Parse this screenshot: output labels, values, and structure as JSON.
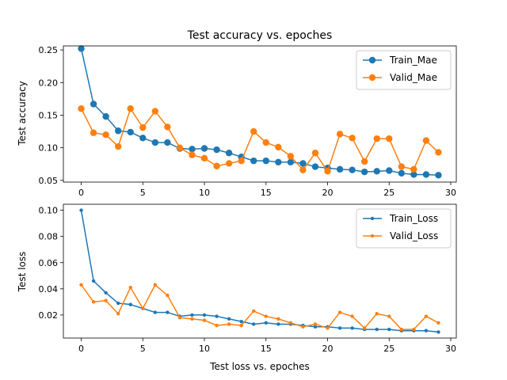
{
  "chart_data": [
    {
      "type": "line",
      "title": "Test accuracy vs. epoches",
      "xlabel": "",
      "ylabel": "Test accuracy",
      "xlim": [
        -1.45,
        30.45
      ],
      "ylim": [
        0.0474,
        0.2562
      ],
      "x_ticks": [
        0,
        5,
        10,
        15,
        20,
        25,
        30
      ],
      "x_tick_labels": [
        "0",
        "5",
        "10",
        "15",
        "20",
        "25",
        "30"
      ],
      "y_ticks": [
        0.05,
        0.1,
        0.15,
        0.2,
        0.25
      ],
      "y_tick_labels": [
        "0.05",
        "0.10",
        "0.15",
        "0.20",
        "0.25"
      ],
      "legend_position": "top-right",
      "grid": false,
      "marker_radius": 4.2,
      "x": [
        0,
        1,
        2,
        3,
        4,
        5,
        6,
        7,
        8,
        9,
        10,
        11,
        12,
        13,
        14,
        15,
        16,
        17,
        18,
        19,
        20,
        21,
        22,
        23,
        24,
        25,
        26,
        27,
        28,
        29
      ],
      "series": [
        {
          "name": "Train_Mae",
          "color": "#1f77b4",
          "values": [
            0.252,
            0.167,
            0.148,
            0.126,
            0.124,
            0.115,
            0.108,
            0.108,
            0.099,
            0.098,
            0.099,
            0.097,
            0.092,
            0.086,
            0.08,
            0.08,
            0.078,
            0.078,
            0.076,
            0.071,
            0.069,
            0.067,
            0.066,
            0.063,
            0.064,
            0.065,
            0.061,
            0.059,
            0.059,
            0.058
          ]
        },
        {
          "name": "Valid_Mae",
          "color": "#ff7f0e",
          "values": [
            0.16,
            0.123,
            0.12,
            0.102,
            0.16,
            0.131,
            0.156,
            0.132,
            0.1,
            0.089,
            0.084,
            0.072,
            0.076,
            0.08,
            0.125,
            0.108,
            0.101,
            0.087,
            0.066,
            0.092,
            0.064,
            0.121,
            0.115,
            0.079,
            0.114,
            0.114,
            0.071,
            0.067,
            0.111,
            0.093
          ]
        }
      ]
    },
    {
      "type": "line",
      "title": "",
      "xlabel": "Test loss vs. epoches",
      "ylabel": "Test loss",
      "xlim": [
        -1.45,
        30.45
      ],
      "ylim": [
        0.0024,
        0.1046
      ],
      "x_ticks": [
        0,
        5,
        10,
        15,
        20,
        25,
        30
      ],
      "x_tick_labels": [
        "0",
        "5",
        "10",
        "15",
        "20",
        "25",
        "30"
      ],
      "y_ticks": [
        0.02,
        0.04,
        0.06,
        0.08,
        0.1
      ],
      "y_tick_labels": [
        "0.02",
        "0.04",
        "0.06",
        "0.08",
        "0.10"
      ],
      "legend_position": "top-right",
      "grid": false,
      "marker_radius": 2.2,
      "x": [
        0,
        1,
        2,
        3,
        4,
        5,
        6,
        7,
        8,
        9,
        10,
        11,
        12,
        13,
        14,
        15,
        16,
        17,
        18,
        19,
        20,
        21,
        22,
        23,
        24,
        25,
        26,
        27,
        28,
        29
      ],
      "series": [
        {
          "name": "Train_Loss",
          "color": "#1f77b4",
          "values": [
            0.1,
            0.046,
            0.037,
            0.029,
            0.028,
            0.025,
            0.022,
            0.022,
            0.019,
            0.02,
            0.02,
            0.019,
            0.017,
            0.015,
            0.013,
            0.014,
            0.013,
            0.013,
            0.012,
            0.011,
            0.011,
            0.01,
            0.01,
            0.009,
            0.009,
            0.009,
            0.008,
            0.008,
            0.008,
            0.007
          ]
        },
        {
          "name": "Valid_Loss",
          "color": "#ff7f0e",
          "values": [
            0.043,
            0.03,
            0.031,
            0.021,
            0.041,
            0.025,
            0.043,
            0.035,
            0.018,
            0.017,
            0.016,
            0.012,
            0.013,
            0.012,
            0.023,
            0.019,
            0.017,
            0.014,
            0.011,
            0.013,
            0.01,
            0.022,
            0.019,
            0.01,
            0.021,
            0.019,
            0.009,
            0.009,
            0.019,
            0.014
          ]
        }
      ]
    }
  ]
}
